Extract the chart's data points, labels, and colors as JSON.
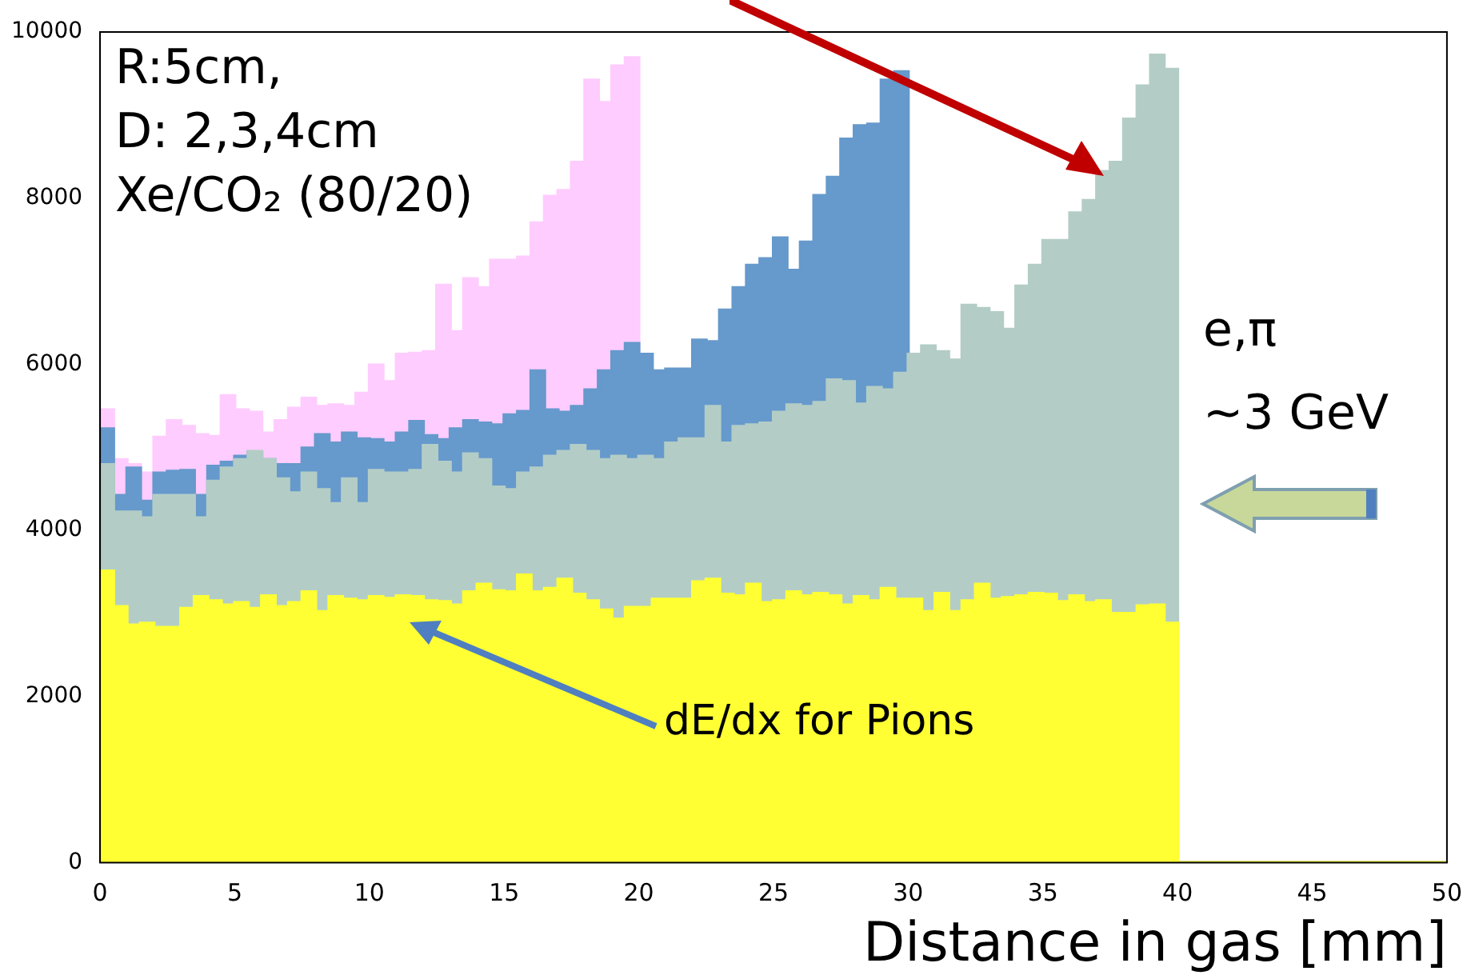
{
  "chart_data": {
    "type": "histogram",
    "xlabel": "Distance in gas [mm]",
    "bins": [
      0,
      0.5,
      1,
      1.5,
      2,
      2.5,
      3,
      3.5,
      4,
      4.5,
      5,
      5.5,
      6,
      6.5,
      7,
      7.5,
      8,
      8.5,
      9,
      9.5,
      10,
      10.5,
      11,
      11.5,
      12,
      12.5,
      13,
      13.5,
      14,
      14.5,
      15,
      15.5,
      16,
      16.5,
      17,
      17.5,
      18,
      18.5,
      19,
      19.5,
      20,
      20.5,
      21,
      21.5,
      22,
      22.5,
      23,
      23.5,
      24,
      24.5,
      25,
      25.5,
      26,
      26.5,
      27,
      27.5,
      28,
      28.5,
      29,
      29.5,
      30,
      30.5,
      31,
      31.5,
      32,
      32.5,
      33,
      33.5,
      34,
      34.5,
      35,
      35.5,
      36,
      36.5,
      37,
      37.5,
      38,
      38.5,
      39,
      39.5,
      40,
      40.5,
      41,
      41.5,
      42,
      42.5,
      43,
      43.5,
      44,
      44.5,
      45,
      45.5,
      46,
      46.5,
      47,
      47.5,
      48,
      48.5,
      49,
      49.5,
      50
    ],
    "series": [
      {
        "color": "#ffccff",
        "values": [
          5450,
          4850,
          4790,
          4690,
          5120,
          5320,
          5250,
          5150,
          5130,
          5620,
          5450,
          5420,
          5170,
          5320,
          5470,
          5590,
          5490,
          5510,
          5490,
          5650,
          5990,
          5790,
          6120,
          6130,
          6150,
          6950,
          6390,
          7030,
          6920,
          7250,
          7250,
          7290,
          7700,
          8020,
          8090,
          8430,
          9420,
          9150,
          9590,
          9690,
          0,
          0,
          0,
          0,
          0,
          0,
          0,
          0,
          0,
          0,
          0,
          0,
          0,
          0,
          0,
          0,
          0,
          0,
          0,
          0,
          0,
          0,
          0,
          0,
          0,
          0,
          0,
          0,
          0,
          0,
          0,
          0,
          0,
          0,
          0,
          0,
          0,
          0,
          0,
          0,
          0,
          0,
          0,
          0,
          0,
          0,
          0,
          0,
          0,
          0,
          0,
          0,
          0,
          0,
          0,
          0,
          0,
          0,
          0,
          0
        ]
      },
      {
        "color": "#6699cc",
        "values": [
          5220,
          4420,
          4750,
          4350,
          4690,
          4710,
          4720,
          4420,
          4770,
          4820,
          4890,
          4940,
          4850,
          4790,
          4790,
          4990,
          5150,
          5050,
          5170,
          5100,
          5090,
          5050,
          5170,
          5310,
          5140,
          5090,
          5220,
          5320,
          5290,
          5270,
          5390,
          5430,
          5920,
          5450,
          5420,
          5490,
          5690,
          5920,
          6150,
          6250,
          6120,
          5920,
          5940,
          5940,
          6290,
          6270,
          6650,
          6920,
          7190,
          7270,
          7520,
          7130,
          7470,
          8030,
          8250,
          8710,
          8870,
          8890,
          9420,
          9520,
          0,
          0,
          0,
          0,
          0,
          0,
          0,
          0,
          0,
          0,
          0,
          0,
          0,
          0,
          0,
          0,
          0,
          0,
          0,
          0,
          0,
          0,
          0,
          0,
          0,
          0,
          0,
          0,
          0,
          0,
          0,
          0,
          0,
          0,
          0,
          0,
          0,
          0,
          0,
          0
        ]
      },
      {
        "color": "#b3cdc6",
        "values": [
          4790,
          4220,
          4220,
          4150,
          4420,
          4420,
          4420,
          4150,
          4590,
          4750,
          4850,
          4950,
          4850,
          4620,
          4450,
          4690,
          4490,
          4320,
          4620,
          4320,
          4720,
          4690,
          4690,
          4720,
          5020,
          4820,
          4690,
          4920,
          4850,
          4520,
          4490,
          4690,
          4750,
          4890,
          4950,
          5020,
          4950,
          4850,
          4890,
          4850,
          4890,
          4850,
          5050,
          5100,
          5100,
          5490,
          5050,
          5250,
          5270,
          5290,
          5420,
          5510,
          5490,
          5540,
          5810,
          5790,
          5520,
          5720,
          5690,
          5890,
          6120,
          6220,
          6150,
          6050,
          6710,
          6670,
          6620,
          6420,
          6940,
          7190,
          7490,
          7490,
          7820,
          7970,
          8320,
          8430,
          8950,
          9350,
          9720,
          9550,
          0,
          0,
          0,
          0,
          0,
          0,
          0,
          0,
          0,
          0,
          0,
          0,
          0,
          0,
          0,
          0,
          0,
          0,
          0,
          0
        ]
      },
      {
        "color": "#ffff33",
        "values": [
          3510,
          3080,
          2860,
          2880,
          2830,
          2830,
          3060,
          3200,
          3150,
          3100,
          3130,
          3060,
          3210,
          3080,
          3130,
          3260,
          3020,
          3200,
          3170,
          3150,
          3200,
          3180,
          3210,
          3200,
          3150,
          3140,
          3100,
          3260,
          3350,
          3270,
          3260,
          3460,
          3260,
          3300,
          3410,
          3230,
          3150,
          3040,
          2930,
          3070,
          3070,
          3170,
          3170,
          3170,
          3380,
          3410,
          3230,
          3210,
          3350,
          3130,
          3150,
          3260,
          3210,
          3240,
          3210,
          3100,
          3200,
          3150,
          3300,
          3170,
          3170,
          3020,
          3240,
          3020,
          3150,
          3350,
          3170,
          3190,
          3210,
          3240,
          3230,
          3140,
          3210,
          3130,
          3150,
          3000,
          3000,
          3090,
          3100,
          2880,
          0,
          0,
          0,
          0,
          0,
          0,
          0,
          0,
          0,
          0,
          0,
          0,
          0,
          0,
          0,
          0,
          0,
          0,
          0,
          0
        ]
      }
    ],
    "xlim": [
      0,
      50
    ],
    "xticks": [
      0,
      5,
      10,
      15,
      20,
      25,
      30,
      35,
      40,
      45,
      50
    ],
    "ylim": [
      0,
      10000
    ],
    "yticks": [
      0,
      2000,
      4000,
      6000,
      8000,
      10000
    ],
    "grid": false,
    "legend": false,
    "annotations": [
      "R:5cm,",
      "D: 2,3,4cm",
      "Xe/CO₂ (80/20)",
      "e,π",
      "~3 GeV",
      "dE/dx  for  Pions"
    ]
  }
}
